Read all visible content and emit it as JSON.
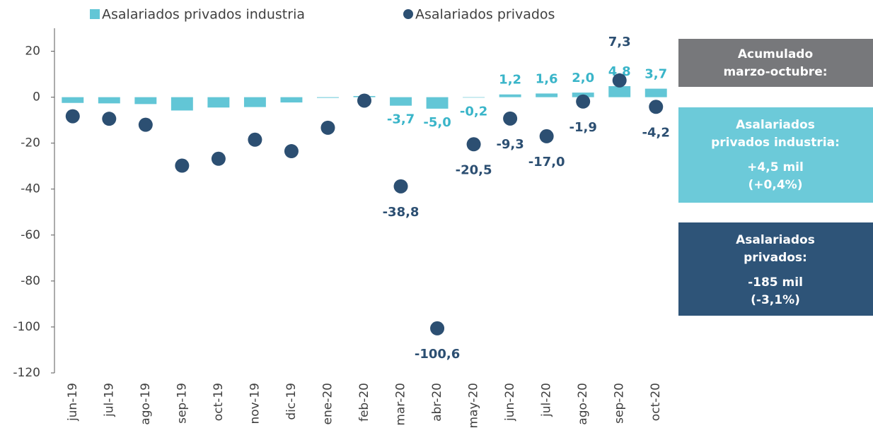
{
  "chart_data": {
    "type": "bar",
    "categories": [
      "jun-19",
      "jul-19",
      "ago-19",
      "sep-19",
      "oct-19",
      "nov-19",
      "dic-19",
      "ene-20",
      "feb-20",
      "mar-20",
      "abr-20",
      "may-20",
      "jun-20",
      "jul-20",
      "ago-20",
      "sep-20",
      "oct-20"
    ],
    "series": [
      {
        "name": "Asalariados privados industria",
        "type": "bar",
        "color": "#62c6d6",
        "label_color": "#3ab5c9",
        "values": [
          -2.5,
          -2.7,
          -3.0,
          -5.8,
          -4.5,
          -4.3,
          -2.3,
          -0.3,
          0.5,
          -3.7,
          -5.0,
          -0.2,
          1.2,
          1.6,
          2.0,
          4.8,
          3.7
        ],
        "value_labels": [
          null,
          null,
          null,
          null,
          null,
          null,
          null,
          null,
          null,
          "-3,7",
          "-5,0",
          "-0,2",
          "1,2",
          "1,6",
          "2,0",
          "4,8",
          "3,7"
        ]
      },
      {
        "name": "Asalariados privados",
        "type": "scatter",
        "color": "#2c4f72",
        "label_color": "#2c4f72",
        "values": [
          -8.3,
          -9.4,
          -12.0,
          -29.8,
          -26.8,
          -18.5,
          -23.5,
          -13.3,
          -1.5,
          -38.8,
          -100.6,
          -20.5,
          -9.3,
          -17.0,
          -1.9,
          7.3,
          -4.2
        ],
        "value_labels": [
          null,
          null,
          null,
          null,
          null,
          null,
          null,
          null,
          null,
          "-38,8",
          "-100,6",
          "-20,5",
          "-9,3",
          "-17,0",
          "-1,9",
          "7,3",
          "-4,2"
        ]
      }
    ],
    "ylim": [
      -120,
      30
    ],
    "yticks": [
      -120,
      -100,
      -80,
      -60,
      -40,
      -20,
      0,
      20
    ],
    "legend": "top",
    "annotations": [
      {
        "color": "#77787b",
        "lines": [
          "Acumulado",
          "marzo-octubre:"
        ]
      },
      {
        "color": "#6ccad9",
        "lines": [
          "Asalariados",
          "privados industria:",
          "+4,5 mil",
          "(+0,4%)"
        ]
      },
      {
        "color": "#2e5478",
        "lines": [
          "Asalariados",
          "privados:",
          "-185 mil",
          "(-3,1%)"
        ]
      }
    ]
  }
}
